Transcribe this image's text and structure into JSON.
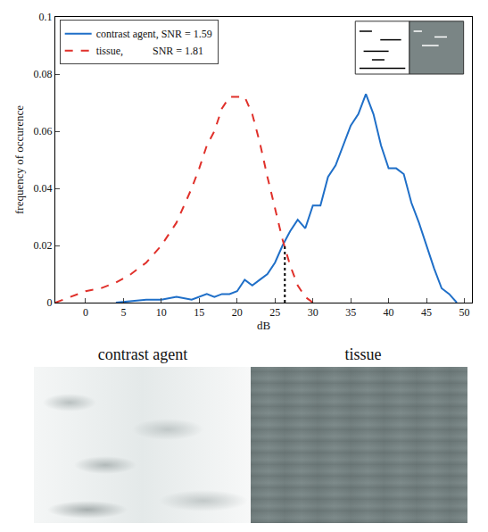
{
  "chart_data": {
    "type": "line",
    "xlabel": "dB",
    "ylabel": "frequency of occurence",
    "xlim": [
      -4,
      51
    ],
    "ylim": [
      0,
      0.1
    ],
    "xticks": [
      0,
      5,
      10,
      15,
      20,
      25,
      30,
      35,
      40,
      45,
      50
    ],
    "yticks": [
      0,
      0.02,
      0.04,
      0.06,
      0.08,
      0.1
    ],
    "grid": false,
    "legend": "upper left",
    "series": [
      {
        "name": "contrast agent, SNR = 1.59",
        "color": "#1f6fc8",
        "line_style": "solid",
        "x": [
          4,
          8,
          10,
          12,
          14,
          15,
          16,
          17,
          18,
          19,
          20,
          21,
          22,
          23,
          24,
          25,
          26,
          27,
          28,
          29,
          30,
          31,
          32,
          33,
          34,
          35,
          36,
          37,
          38,
          39,
          40,
          41,
          42,
          43,
          44,
          45,
          46,
          47,
          48,
          49
        ],
        "values": [
          0,
          0.001,
          0.001,
          0.002,
          0.001,
          0.002,
          0.003,
          0.002,
          0.003,
          0.003,
          0.004,
          0.008,
          0.006,
          0.008,
          0.01,
          0.014,
          0.02,
          0.025,
          0.029,
          0.026,
          0.034,
          0.034,
          0.044,
          0.048,
          0.055,
          0.062,
          0.066,
          0.073,
          0.066,
          0.055,
          0.047,
          0.047,
          0.045,
          0.035,
          0.028,
          0.02,
          0.012,
          0.005,
          0.003,
          0
        ]
      },
      {
        "name": "tissue,           SNR = 1.81",
        "color": "#e0302a",
        "line_style": "dash",
        "x": [
          -4,
          -2,
          0,
          2,
          4,
          6,
          8,
          10,
          12,
          14,
          15,
          16,
          17,
          18,
          19,
          20,
          21,
          22,
          23,
          24,
          25,
          26,
          27,
          28,
          29,
          30
        ],
        "values": [
          0,
          0.002,
          0.004,
          0.005,
          0.007,
          0.01,
          0.014,
          0.02,
          0.028,
          0.04,
          0.047,
          0.055,
          0.06,
          0.068,
          0.072,
          0.072,
          0.072,
          0.066,
          0.056,
          0.044,
          0.033,
          0.022,
          0.013,
          0.006,
          0.002,
          0
        ]
      }
    ],
    "crossover": {
      "x": 26.3,
      "y": 0.02
    }
  },
  "image": {
    "labels": [
      "contrast agent",
      "tissue"
    ]
  }
}
